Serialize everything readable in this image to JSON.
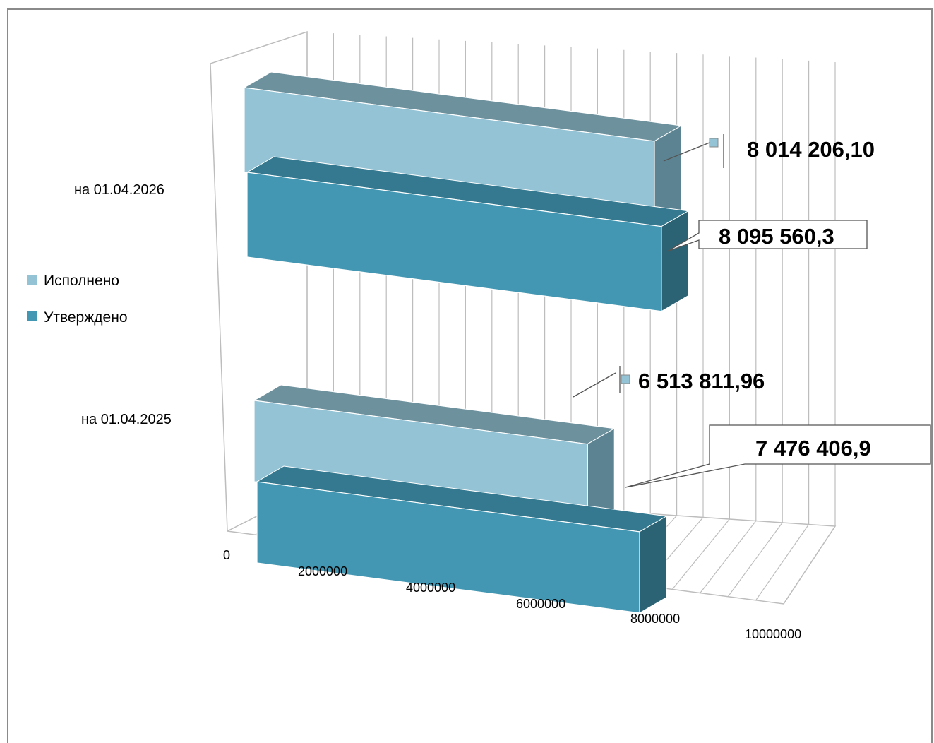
{
  "colors": {
    "executed_front": "#93C3D5",
    "executed_top": "#6E919E",
    "executed_side": "#5B8391",
    "approved_front": "#4397B3",
    "approved_top": "#34798F",
    "approved_side": "#2B6375",
    "grid": "#bdbdbd",
    "frame": "#8a8a8a"
  },
  "chart_data": {
    "type": "bar",
    "orientation": "horizontal",
    "three_d": true,
    "categories": [
      "на 01.04.2025",
      "на 01.04.2026"
    ],
    "series": [
      {
        "name": "Утверждено",
        "values": [
          7476406.9,
          8095560.3
        ],
        "labels": [
          "7 476 406,9",
          "8 095 560,3"
        ]
      },
      {
        "name": "Исполнено",
        "values": [
          6513811.96,
          8014206.1
        ],
        "labels": [
          "6 513 811,96",
          "8 014 206,10"
        ]
      }
    ],
    "x_ticks": [
      "0",
      "2000000",
      "4000000",
      "6000000",
      "8000000",
      "10000000"
    ],
    "xlim": [
      0,
      10000000
    ],
    "grid": true,
    "legend_position": "left",
    "legend": [
      "Исполнено",
      "Утверждено"
    ]
  }
}
